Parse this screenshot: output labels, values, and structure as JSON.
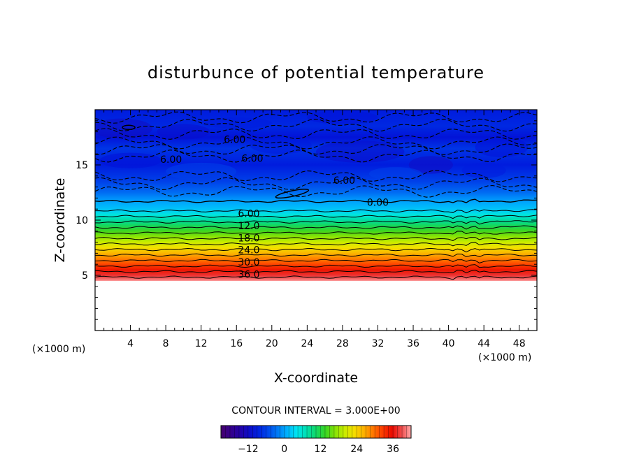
{
  "chart_data": {
    "type": "heatmap",
    "title": "disturbunce of potential temperature",
    "xlabel": "X-coordinate",
    "ylabel": "Z-coordinate",
    "x_unit": "(×1000 m)",
    "z_unit": "(×1000 m)",
    "xlim": [
      0,
      50
    ],
    "ylim": [
      0,
      20
    ],
    "x_ticks": [
      4,
      8,
      12,
      16,
      20,
      24,
      28,
      32,
      36,
      40,
      44,
      48
    ],
    "y_ticks": [
      5,
      10,
      15
    ],
    "contour_interval_text": "CONTOUR INTERVAL = 3.000E+00",
    "contour_interval": 3,
    "colorbar": {
      "range": [
        -21,
        42
      ],
      "ticks": [
        -12,
        0,
        12,
        24,
        36
      ]
    },
    "surface_z": 4.5,
    "field_profile": [
      {
        "z": 4.5,
        "value": 41
      },
      {
        "z": 5.0,
        "value": 38
      },
      {
        "z": 5.5,
        "value": 35
      },
      {
        "z": 6.0,
        "value": 32
      },
      {
        "z": 6.5,
        "value": 29
      },
      {
        "z": 7.0,
        "value": 26
      },
      {
        "z": 7.5,
        "value": 23
      },
      {
        "z": 8.0,
        "value": 20
      },
      {
        "z": 8.5,
        "value": 17
      },
      {
        "z": 9.0,
        "value": 14
      },
      {
        "z": 9.5,
        "value": 11
      },
      {
        "z": 10.0,
        "value": 8
      },
      {
        "z": 10.5,
        "value": 5
      },
      {
        "z": 11.0,
        "value": 2
      },
      {
        "z": 11.7,
        "value": 0
      },
      {
        "z": 12.5,
        "value": -3
      },
      {
        "z": 13.5,
        "value": -6
      },
      {
        "z": 15.0,
        "value": -9
      },
      {
        "z": 16.5,
        "value": -7
      },
      {
        "z": 17.5,
        "value": -10
      },
      {
        "z": 18.5,
        "value": -8
      },
      {
        "z": 20.0,
        "value": -9
      }
    ],
    "contour_labels": [
      {
        "text": "6.00",
        "x": 15.8,
        "z": 17.3
      },
      {
        "text": "6.00",
        "x": 8.6,
        "z": 15.5
      },
      {
        "text": "6.00",
        "x": 17.8,
        "z": 15.6
      },
      {
        "text": "6.00",
        "x": 28.2,
        "z": 13.6
      },
      {
        "text": "0.00",
        "x": 32.0,
        "z": 11.6
      },
      {
        "text": "6.00",
        "x": 17.4,
        "z": 10.6
      },
      {
        "text": "12.0",
        "x": 17.4,
        "z": 9.5
      },
      {
        "text": "18.0",
        "x": 17.4,
        "z": 8.4
      },
      {
        "text": "24.0",
        "x": 17.4,
        "z": 7.3
      },
      {
        "text": "30.0",
        "x": 17.4,
        "z": 6.2
      },
      {
        "text": "36.0",
        "x": 17.4,
        "z": 5.1
      }
    ]
  }
}
